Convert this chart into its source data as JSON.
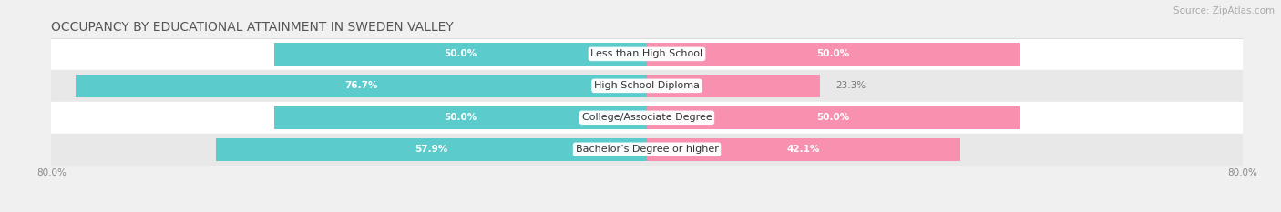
{
  "title": "OCCUPANCY BY EDUCATIONAL ATTAINMENT IN SWEDEN VALLEY",
  "source": "Source: ZipAtlas.com",
  "categories": [
    "Less than High School",
    "High School Diploma",
    "College/Associate Degree",
    "Bachelor’s Degree or higher"
  ],
  "owner_values": [
    50.0,
    76.7,
    50.0,
    57.9
  ],
  "renter_values": [
    50.0,
    23.3,
    50.0,
    42.1
  ],
  "owner_color": "#5bcbcb",
  "renter_color": "#f890b0",
  "xlim_left": -80.0,
  "xlim_right": 80.0,
  "background_color": "#f0f0f0",
  "row_bg_colors": [
    "#ffffff",
    "#e8e8e8",
    "#ffffff",
    "#e8e8e8"
  ],
  "title_fontsize": 10,
  "source_fontsize": 7.5,
  "label_fontsize": 7.5,
  "cat_fontsize": 8,
  "bar_height": 0.72,
  "xtick_left_label": "80.0%",
  "xtick_right_label": "80.0%"
}
